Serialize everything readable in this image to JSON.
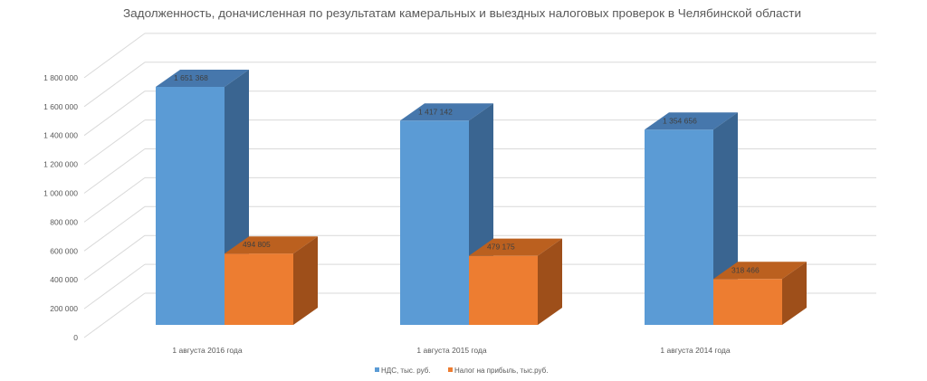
{
  "chart_data": {
    "type": "bar",
    "style": "3d-clustered-column",
    "title": "Задолженность, доначисленная по результатам камеральных и выездных налоговых проверок в Челябинской области",
    "xlabel": "",
    "ylabel": "",
    "categories": [
      "1 августа 2016 года",
      "1 августа 2015 года",
      "1 августа 2014 года"
    ],
    "series": [
      {
        "name": "НДС, тыс. руб.",
        "values": [
          1651368,
          1417142,
          1354656
        ],
        "labels": [
          "1 651 368",
          "1 417 142",
          "1 354 656"
        ],
        "color": "#5B9BD5",
        "top_color": "#4677AC",
        "side_color": "#3A6591"
      },
      {
        "name": "Налог на прибыль, тыс.руб.",
        "values": [
          494805,
          479175,
          318466
        ],
        "labels": [
          "494 805",
          "479 175",
          "318 466"
        ],
        "color": "#ED7D31",
        "top_color": "#BB601F",
        "side_color": "#9E4F1A"
      }
    ],
    "ylim": [
      0,
      1800000
    ],
    "yticks": [
      0,
      200000,
      400000,
      600000,
      800000,
      1000000,
      1200000,
      1400000,
      1600000,
      1800000
    ],
    "ytick_labels": [
      "0",
      "200 000",
      "400 000",
      "600 000",
      "800 000",
      "1 000 000",
      "1 200 000",
      "1 400 000",
      "1 600 000",
      "1 800 000"
    ],
    "grid": true,
    "legend_position": "bottom"
  }
}
